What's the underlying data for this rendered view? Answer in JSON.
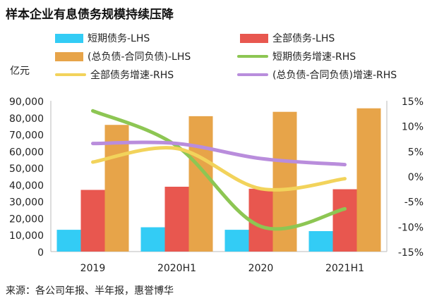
{
  "title": "样本企业有息债务规模持续压降",
  "unit_label": "亿元",
  "source": "来源：各公司年报、半年报，惠誉博华",
  "colors": {
    "short_debt": "#33ccf5",
    "total_debt": "#e8574f",
    "adj_debt": "#e7a449",
    "short_growth": "#8dc653",
    "total_growth": "#f2d35b",
    "adj_growth": "#b98ddc"
  },
  "chart_data": {
    "type": "bar",
    "title": "样本企业有息债务规模持续压降",
    "categories": [
      "2019",
      "2020H1",
      "2020",
      "2021H1"
    ],
    "left_axis": {
      "ylim": [
        0,
        90000
      ],
      "ticks": [
        "0",
        "10,000",
        "20,000",
        "30,000",
        "40,000",
        "50,000",
        "60,000",
        "70,000",
        "80,000",
        "90,000"
      ]
    },
    "right_axis": {
      "ylim": [
        -15,
        15
      ],
      "ticks": [
        "-15%",
        "-10%",
        "-5%",
        "0%",
        "5%",
        "10%",
        "15%"
      ]
    },
    "series": [
      {
        "name": "短期债务-LHS",
        "kind": "bar",
        "axis": "left",
        "color_key": "short_debt",
        "values": [
          13000,
          14500,
          13000,
          12200
        ]
      },
      {
        "name": "全部债务-LHS",
        "kind": "bar",
        "axis": "left",
        "color_key": "total_debt",
        "values": [
          36800,
          38700,
          37500,
          37200
        ]
      },
      {
        "name": "(总负债-合同负债)-LHS",
        "kind": "bar",
        "axis": "left",
        "color_key": "adj_debt",
        "values": [
          75600,
          80800,
          83400,
          85500
        ]
      },
      {
        "name": "短期债务增速-RHS",
        "kind": "line",
        "axis": "right",
        "color_key": "short_growth",
        "values": [
          13,
          6,
          -10,
          -6.5
        ]
      },
      {
        "name": "全部债务增速-RHS",
        "kind": "line",
        "axis": "right",
        "color_key": "total_growth",
        "values": [
          2.8,
          5.5,
          -2.5,
          -0.5
        ]
      },
      {
        "name": "(总负债-合同负债)增速-RHS",
        "kind": "line",
        "axis": "right",
        "color_key": "adj_growth",
        "values": [
          6.5,
          6.5,
          3.5,
          2.3
        ]
      }
    ]
  }
}
